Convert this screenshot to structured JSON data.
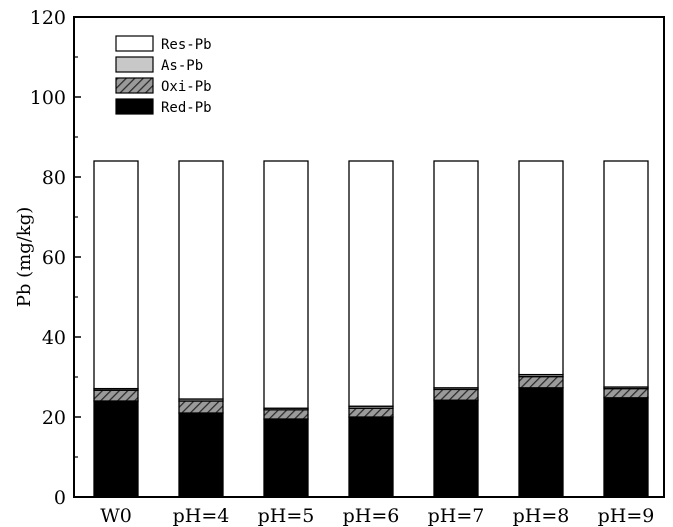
{
  "chart_data": {
    "type": "bar",
    "stacked": true,
    "title": "",
    "xlabel": "",
    "ylabel": "Pb (mg/kg)",
    "ylim": [
      0,
      120
    ],
    "yticks": [
      0,
      20,
      40,
      60,
      80,
      100,
      120
    ],
    "categories": [
      "W0",
      "pH=4",
      "pH=5",
      "pH=6",
      "pH=7",
      "pH=8",
      "pH=9"
    ],
    "series": [
      {
        "name": "Red-Pb",
        "values": [
          24.0,
          21.0,
          19.5,
          20.0,
          24.2,
          27.3,
          24.8
        ],
        "fill": "#000000"
      },
      {
        "name": "Oxi-Pb",
        "values": [
          2.7,
          3.0,
          2.3,
          2.2,
          2.7,
          2.8,
          2.3
        ],
        "fill": "hatch"
      },
      {
        "name": "As-Pb",
        "values": [
          0.4,
          0.5,
          0.4,
          0.5,
          0.4,
          0.5,
          0.4
        ],
        "fill": "#c8c8c8"
      },
      {
        "name": "Res-Pb",
        "values": [
          56.9,
          59.5,
          61.8,
          61.3,
          56.7,
          53.4,
          56.5
        ],
        "fill": "#ffffff"
      }
    ],
    "legend_order": [
      "Res-Pb",
      "As-Pb",
      "Oxi-Pb",
      "Red-Pb"
    ],
    "legend_position": "top-left",
    "grid": false
  }
}
